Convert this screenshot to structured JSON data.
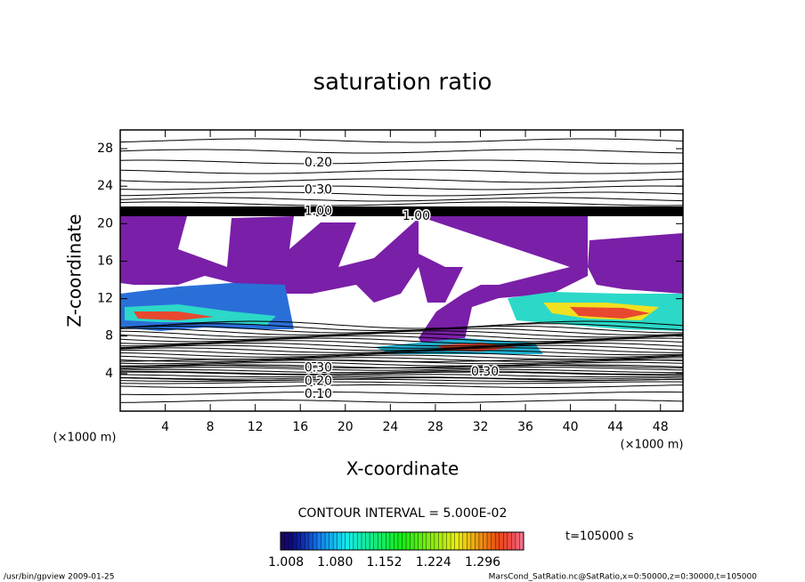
{
  "chart_data": {
    "type": "contour",
    "title": "saturation ratio",
    "xlabel": "X-coordinate",
    "ylabel": "Z-coordinate",
    "x_unit_label": "(×1000 m)",
    "y_unit_label": "(×1000 m)",
    "xlim": [
      0,
      50
    ],
    "ylim": [
      0,
      30
    ],
    "xticks": [
      4,
      8,
      12,
      16,
      20,
      24,
      28,
      32,
      36,
      40,
      44,
      48
    ],
    "yticks": [
      4,
      8,
      12,
      16,
      20,
      24,
      28
    ],
    "contour_labels": [
      {
        "x": 17.6,
        "z": 26.5,
        "label": "0.20"
      },
      {
        "x": 17.6,
        "z": 23.6,
        "label": "0.30"
      },
      {
        "x": 17.6,
        "z": 21.3,
        "label": "1.00"
      },
      {
        "x": 26.3,
        "z": 20.8,
        "label": "1.00"
      },
      {
        "x": 32.4,
        "z": 4.2,
        "label": "0.30"
      },
      {
        "x": 17.6,
        "z": 3.2,
        "label": "0.20"
      },
      {
        "x": 17.6,
        "z": 1.8,
        "label": "0.10"
      },
      {
        "x": 17.6,
        "z": 4.6,
        "label": "0.30"
      }
    ],
    "contour_interval": "CONTOUR INTERVAL = 5.000E-02",
    "colorbar": {
      "clim": [
        1.0,
        1.356
      ],
      "ticks": [
        1.008,
        {
          "value": 1.08,
          "label": "1.080"
        },
        1.152,
        1.224,
        1.296
      ]
    },
    "time_label": "t=105000 s",
    "footer_left": "/usr/bin/gpview   2009-01-25",
    "footer_right": "MarsCond_SatRatio.nc@SatRatio,x=0:50000,z=0:30000,t=105000"
  }
}
